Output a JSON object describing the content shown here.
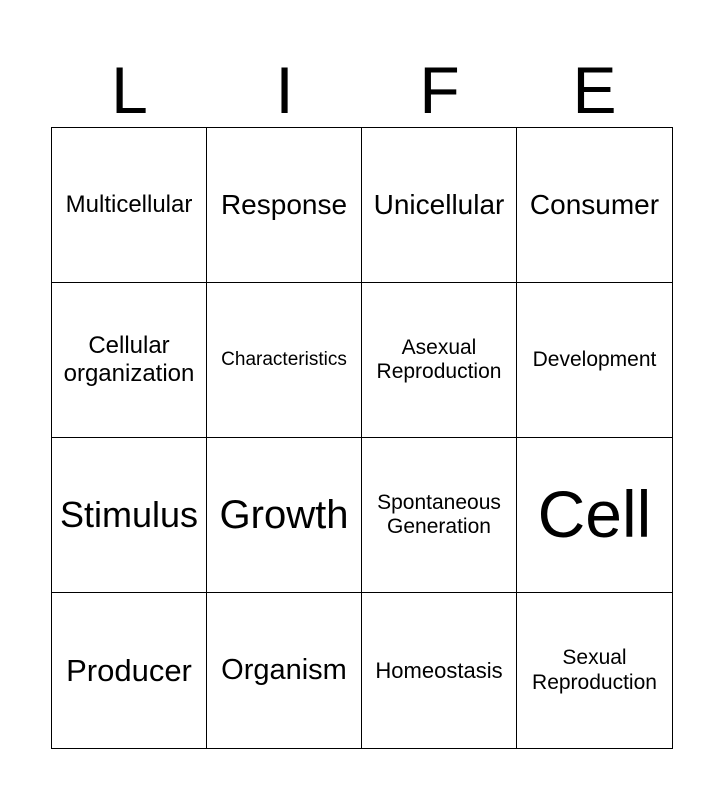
{
  "title_letters": [
    "L",
    "I",
    "F",
    "E"
  ],
  "board": {
    "rows": [
      [
        "Multicellular",
        "Response",
        "Unicellular",
        "Consumer"
      ],
      [
        "Cellular organization",
        "Characteristics",
        "Asexual Reproduction",
        "Development"
      ],
      [
        "Stimulus",
        "Growth",
        "Spontaneous Generation",
        "Cell"
      ],
      [
        "Producer",
        "Organism",
        "Homeostasis",
        "Sexual Reproduction"
      ]
    ]
  }
}
